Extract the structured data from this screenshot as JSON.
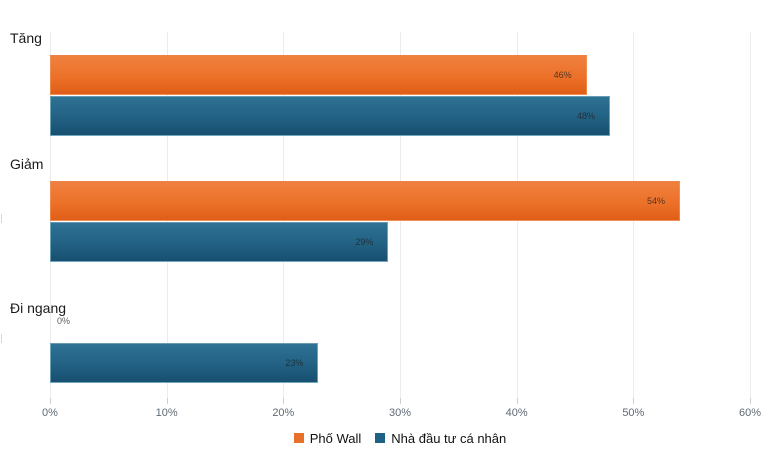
{
  "chart_data": {
    "type": "bar",
    "orientation": "horizontal",
    "title": "",
    "categories": [
      "Tăng",
      "Giảm",
      "Đi ngang"
    ],
    "series": [
      {
        "name": "Phố Wall",
        "color": "#e8702a",
        "values": [
          46,
          54,
          0
        ]
      },
      {
        "name": "Nhà đầu tư cá nhân",
        "color": "#1f6285",
        "values": [
          48,
          29,
          23
        ]
      }
    ],
    "value_suffix": "%",
    "x_ticks": [
      "0%",
      "10%",
      "20%",
      "30%",
      "40%",
      "50%",
      "60%"
    ],
    "xlim": [
      0,
      60
    ],
    "grid": true,
    "legend_position": "bottom"
  }
}
